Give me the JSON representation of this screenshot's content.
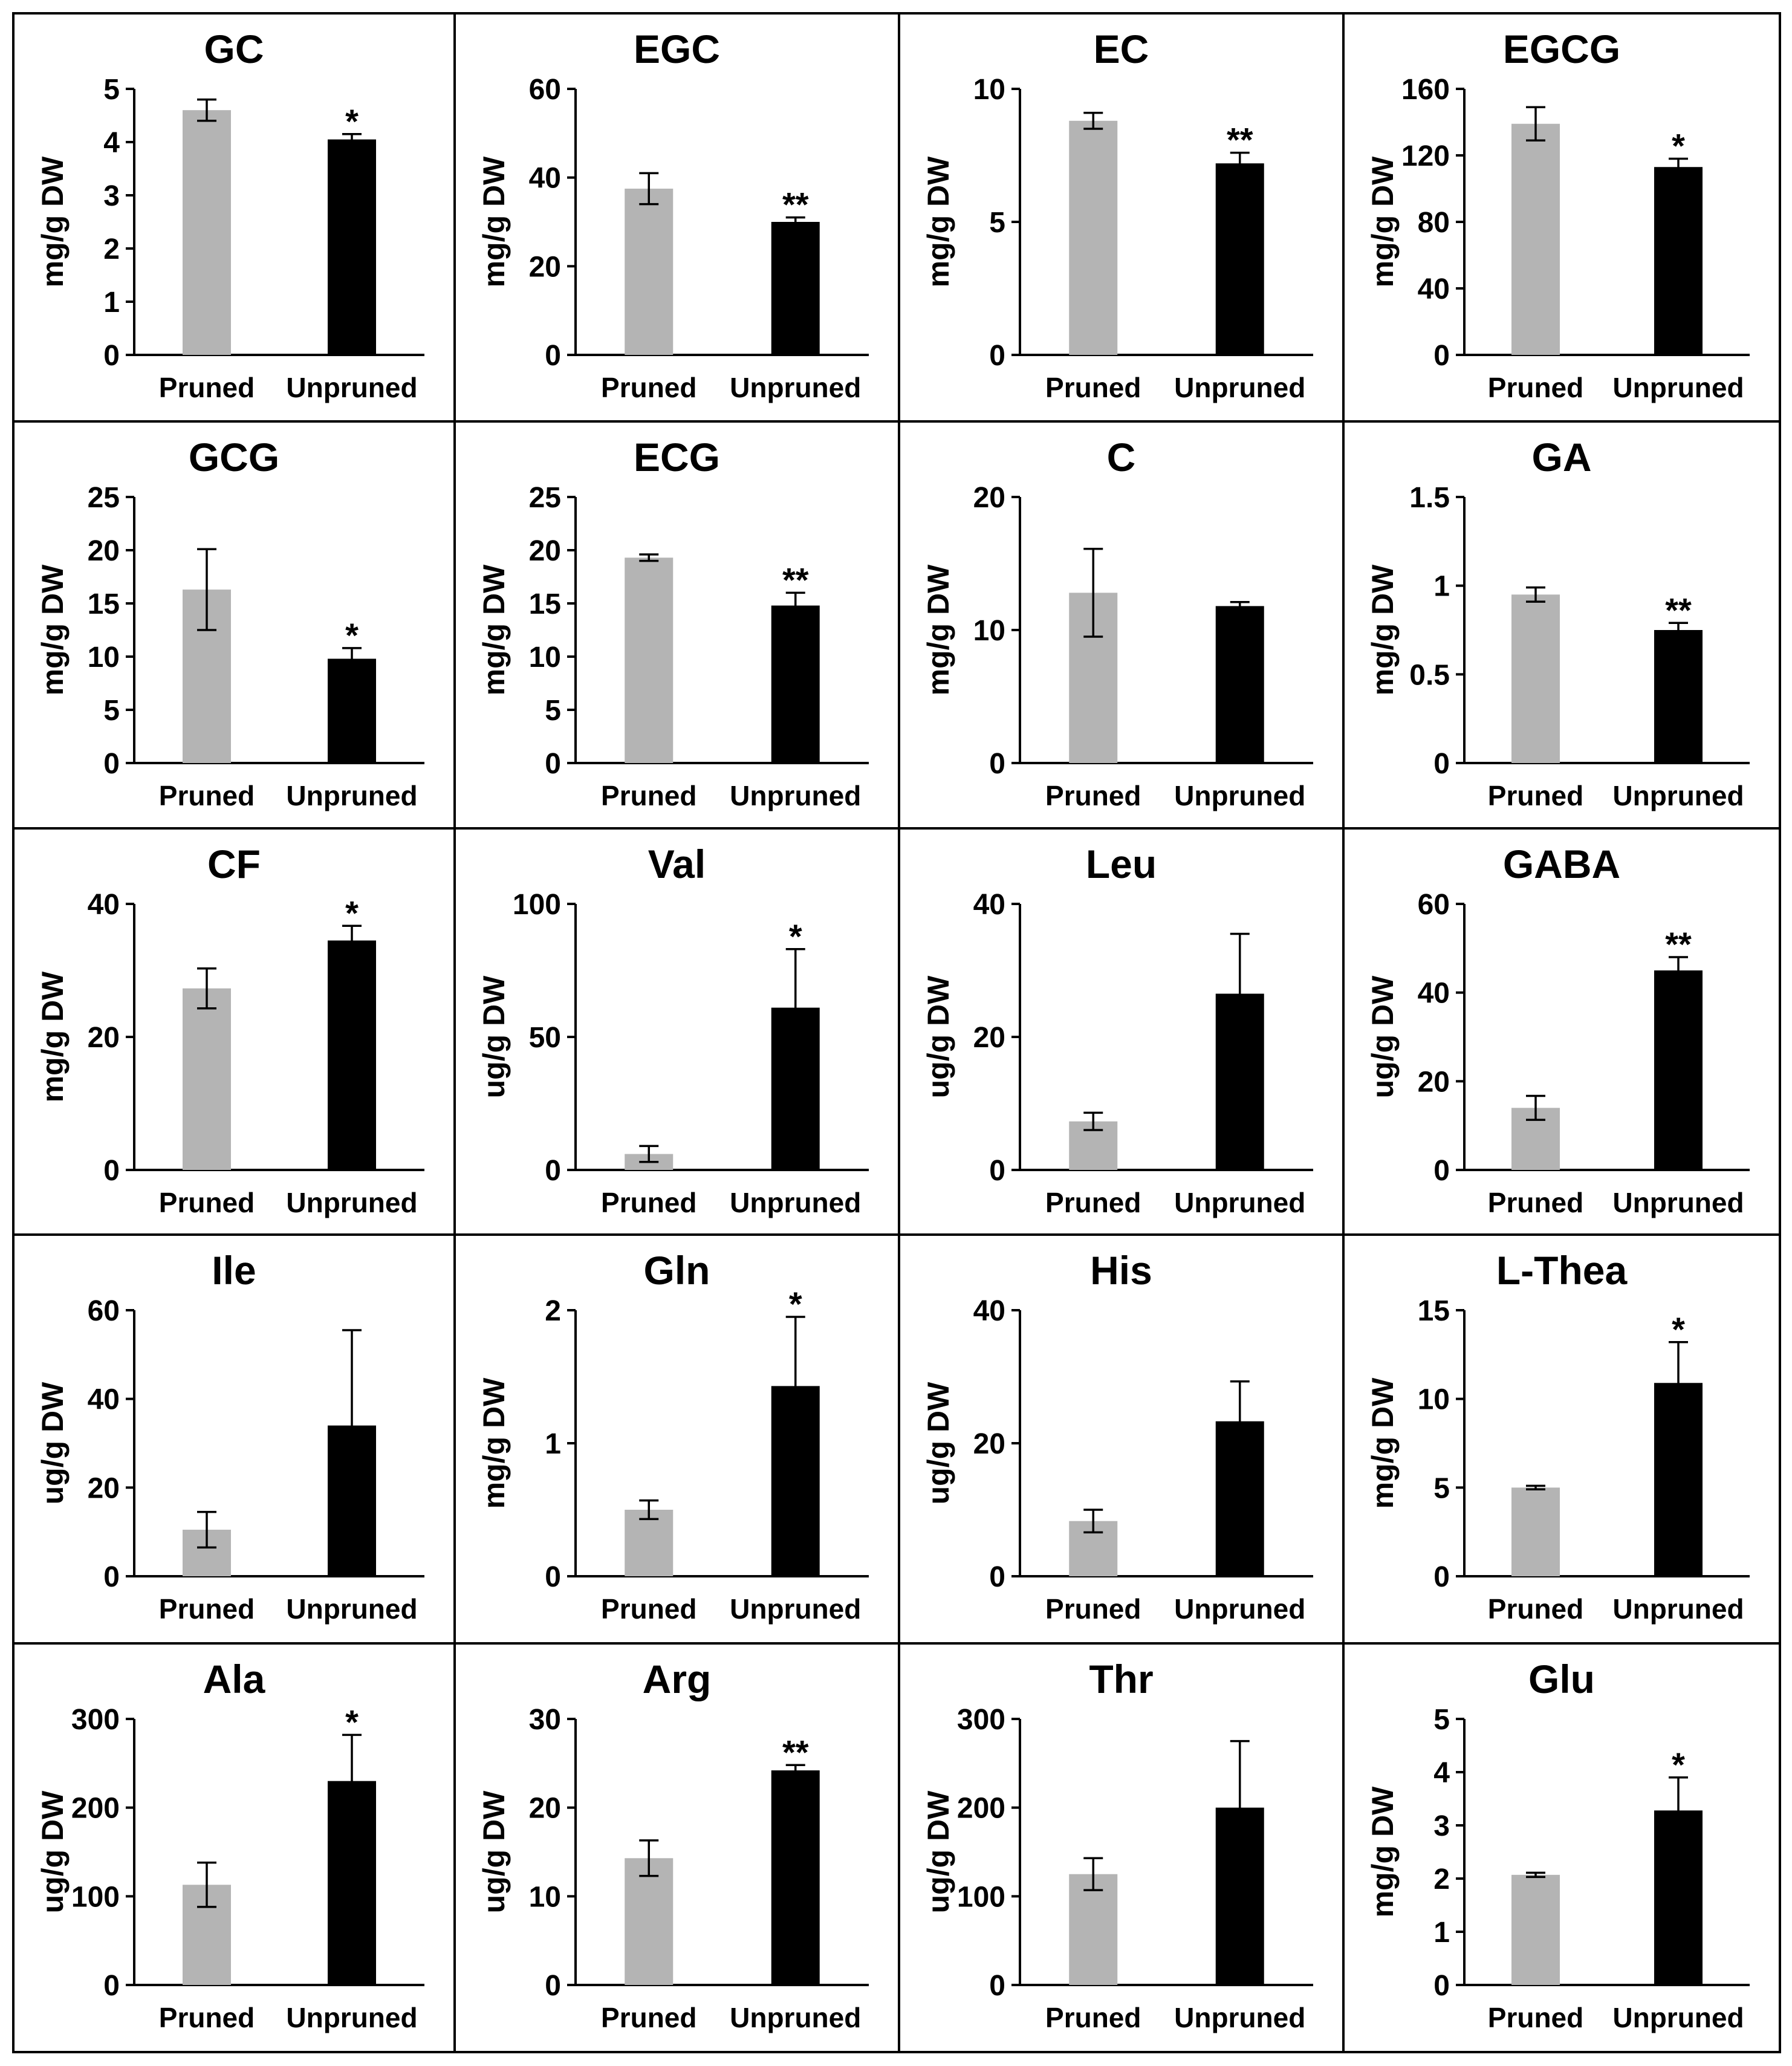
{
  "figure": {
    "colors": {
      "pruned": "#b4b4b4",
      "unpruned": "#000000",
      "axis": "#000000",
      "border": "#000000"
    }
  },
  "chart_data": [
    {
      "type": "bar",
      "title": "GC",
      "ylabel": "mg/g DW",
      "ylim": [
        0,
        5
      ],
      "yticks": [
        0,
        1,
        2,
        3,
        4,
        5
      ],
      "categories": [
        "Pruned",
        "Unpruned"
      ],
      "values": [
        4.6,
        4.05
      ],
      "errors": [
        0.2,
        0.1
      ],
      "significance": [
        "",
        "*"
      ]
    },
    {
      "type": "bar",
      "title": "EGC",
      "ylabel": "mg/g DW",
      "ylim": [
        0,
        60
      ],
      "yticks": [
        0,
        20,
        40,
        60
      ],
      "categories": [
        "Pruned",
        "Unpruned"
      ],
      "values": [
        37.5,
        30
      ],
      "errors": [
        3.5,
        1
      ],
      "significance": [
        "",
        "**"
      ]
    },
    {
      "type": "bar",
      "title": "EC",
      "ylabel": "mg/g DW",
      "ylim": [
        0,
        10
      ],
      "yticks": [
        0,
        5,
        10
      ],
      "categories": [
        "Pruned",
        "Unpruned"
      ],
      "values": [
        8.8,
        7.2
      ],
      "errors": [
        0.3,
        0.4
      ],
      "significance": [
        "",
        "**"
      ]
    },
    {
      "type": "bar",
      "title": "EGCG",
      "ylabel": "mg/g DW",
      "ylim": [
        0,
        160
      ],
      "yticks": [
        0,
        40,
        80,
        120,
        160
      ],
      "categories": [
        "Pruned",
        "Unpruned"
      ],
      "values": [
        139,
        113
      ],
      "errors": [
        10,
        5
      ],
      "significance": [
        "",
        "*"
      ]
    },
    {
      "type": "bar",
      "title": "GCG",
      "ylabel": "mg/g DW",
      "ylim": [
        0,
        25
      ],
      "yticks": [
        0,
        5,
        10,
        15,
        20,
        25
      ],
      "categories": [
        "Pruned",
        "Unpruned"
      ],
      "values": [
        16.3,
        9.8
      ],
      "errors": [
        3.8,
        1
      ],
      "significance": [
        "",
        "*"
      ]
    },
    {
      "type": "bar",
      "title": "ECG",
      "ylabel": "mg/g DW",
      "ylim": [
        0,
        25
      ],
      "yticks": [
        0,
        5,
        10,
        15,
        20,
        25
      ],
      "categories": [
        "Pruned",
        "Unpruned"
      ],
      "values": [
        19.3,
        14.8
      ],
      "errors": [
        0.3,
        1.2
      ],
      "significance": [
        "",
        "**"
      ]
    },
    {
      "type": "bar",
      "title": "C",
      "ylabel": "mg/g DW",
      "ylim": [
        0,
        20
      ],
      "yticks": [
        0,
        10,
        20
      ],
      "categories": [
        "Pruned",
        "Unpruned"
      ],
      "values": [
        12.8,
        11.8
      ],
      "errors": [
        3.3,
        0.3
      ],
      "significance": [
        "",
        ""
      ]
    },
    {
      "type": "bar",
      "title": "GA",
      "ylabel": "mg/g DW",
      "ylim": [
        0,
        1.5
      ],
      "yticks": [
        "0",
        "0.5",
        "1",
        "1.5"
      ],
      "categories": [
        "Pruned",
        "Unpruned"
      ],
      "values": [
        0.95,
        0.75
      ],
      "errors": [
        0.04,
        0.04
      ],
      "significance": [
        "",
        "**"
      ]
    },
    {
      "type": "bar",
      "title": "CF",
      "ylabel": "mg/g DW",
      "ylim": [
        0,
        40
      ],
      "yticks": [
        0,
        20,
        40
      ],
      "categories": [
        "Pruned",
        "Unpruned"
      ],
      "values": [
        27.3,
        34.5
      ],
      "errors": [
        3,
        2.2
      ],
      "significance": [
        "",
        "*"
      ]
    },
    {
      "type": "bar",
      "title": "Val",
      "ylabel": "ug/g DW",
      "ylim": [
        0,
        100
      ],
      "yticks": [
        0,
        50,
        100
      ],
      "categories": [
        "Pruned",
        "Unpruned"
      ],
      "values": [
        6,
        61
      ],
      "errors": [
        3,
        22
      ],
      "significance": [
        "",
        "*"
      ]
    },
    {
      "type": "bar",
      "title": "Leu",
      "ylabel": "ug/g DW",
      "ylim": [
        0,
        40
      ],
      "yticks": [
        0,
        20,
        40
      ],
      "categories": [
        "Pruned",
        "Unpruned"
      ],
      "values": [
        7.3,
        26.5
      ],
      "errors": [
        1.3,
        9
      ],
      "significance": [
        "",
        ""
      ]
    },
    {
      "type": "bar",
      "title": "GABA",
      "ylabel": "ug/g DW",
      "ylim": [
        0,
        60
      ],
      "yticks": [
        0,
        20,
        40,
        60
      ],
      "categories": [
        "Pruned",
        "Unpruned"
      ],
      "values": [
        14,
        45
      ],
      "errors": [
        2.7,
        3
      ],
      "significance": [
        "",
        "**"
      ]
    },
    {
      "type": "bar",
      "title": "Ile",
      "ylabel": "ug/g DW",
      "ylim": [
        0,
        60
      ],
      "yticks": [
        0,
        20,
        40,
        60
      ],
      "categories": [
        "Pruned",
        "Unpruned"
      ],
      "values": [
        10.5,
        34
      ],
      "errors": [
        4,
        21.5
      ],
      "significance": [
        "",
        ""
      ]
    },
    {
      "type": "bar",
      "title": "Gln",
      "ylabel": "mg/g DW",
      "ylim": [
        0,
        2
      ],
      "yticks": [
        0,
        1,
        2
      ],
      "categories": [
        "Pruned",
        "Unpruned"
      ],
      "values": [
        0.5,
        1.43
      ],
      "errors": [
        0.07,
        0.52
      ],
      "significance": [
        "",
        "*"
      ]
    },
    {
      "type": "bar",
      "title": "His",
      "ylabel": "ug/g DW",
      "ylim": [
        0,
        40
      ],
      "yticks": [
        0,
        20,
        40
      ],
      "categories": [
        "Pruned",
        "Unpruned"
      ],
      "values": [
        8.3,
        23.3
      ],
      "errors": [
        1.7,
        6
      ],
      "significance": [
        "",
        ""
      ]
    },
    {
      "type": "bar",
      "title": "L-Thea",
      "ylabel": "mg/g DW",
      "ylim": [
        0,
        15
      ],
      "yticks": [
        0,
        5,
        10,
        15
      ],
      "categories": [
        "Pruned",
        "Unpruned"
      ],
      "values": [
        5,
        10.9
      ],
      "errors": [
        0.1,
        2.3
      ],
      "significance": [
        "",
        "*"
      ]
    },
    {
      "type": "bar",
      "title": "Ala",
      "ylabel": "ug/g DW",
      "ylim": [
        0,
        300
      ],
      "yticks": [
        0,
        100,
        200,
        300
      ],
      "categories": [
        "Pruned",
        "Unpruned"
      ],
      "values": [
        113,
        230
      ],
      "errors": [
        25,
        52
      ],
      "significance": [
        "",
        "*"
      ]
    },
    {
      "type": "bar",
      "title": "Arg",
      "ylabel": "ug/g DW",
      "ylim": [
        0,
        30
      ],
      "yticks": [
        0,
        10,
        20,
        30
      ],
      "categories": [
        "Pruned",
        "Unpruned"
      ],
      "values": [
        14.3,
        24.2
      ],
      "errors": [
        2,
        0.6
      ],
      "significance": [
        "",
        "**"
      ]
    },
    {
      "type": "bar",
      "title": "Thr",
      "ylabel": "ug/g DW",
      "ylim": [
        0,
        300
      ],
      "yticks": [
        0,
        100,
        200,
        300
      ],
      "categories": [
        "Pruned",
        "Unpruned"
      ],
      "values": [
        125,
        200
      ],
      "errors": [
        18,
        75
      ],
      "significance": [
        "",
        ""
      ]
    },
    {
      "type": "bar",
      "title": "Glu",
      "ylabel": "mg/g DW",
      "ylim": [
        0,
        5
      ],
      "yticks": [
        0,
        1,
        2,
        3,
        4,
        5
      ],
      "categories": [
        "Pruned",
        "Unpruned"
      ],
      "values": [
        2.07,
        3.28
      ],
      "errors": [
        0.04,
        0.62
      ],
      "significance": [
        "",
        "*"
      ]
    }
  ]
}
